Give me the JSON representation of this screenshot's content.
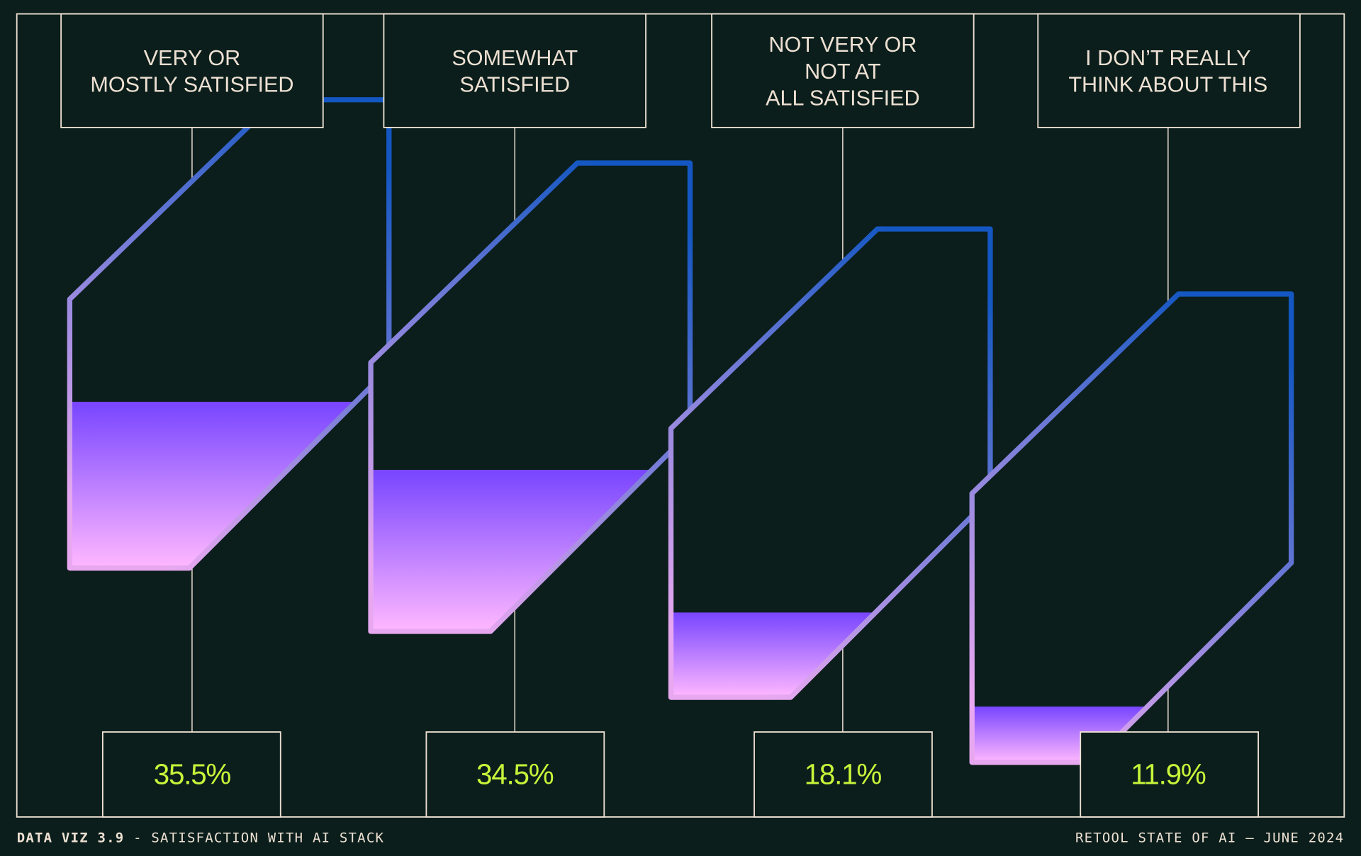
{
  "chart_data": {
    "type": "bar",
    "categories": [
      [
        "VERY OR",
        "MOSTLY SATISFIED"
      ],
      [
        "SOMEWHAT",
        "SATISFIED"
      ],
      [
        "NOT VERY OR",
        "NOT AT",
        "ALL SATISFIED"
      ],
      [
        "I DON’T REALLY",
        "THINK ABOUT THIS"
      ]
    ],
    "values": [
      35.5,
      34.5,
      18.1,
      11.9
    ],
    "value_labels": [
      "35.5%",
      "34.5%",
      "18.1%",
      "11.9%"
    ],
    "ylim": [
      0,
      100
    ],
    "unit": "%"
  },
  "footer": {
    "left_bold": "DATA VIZ 3.9",
    "left_rest": " - SATISFACTION WITH AI STACK",
    "right": "RETOOL STATE OF AI — JUNE 2024"
  },
  "colors": {
    "background": "#0b1e1c",
    "frame": "#ede0d2",
    "value_text": "#c8f53a",
    "stroke_start": "#e8a8f0",
    "stroke_end": "#1457c2",
    "fill_top": "#7845ff",
    "fill_bottom": "#ffb8ff"
  }
}
